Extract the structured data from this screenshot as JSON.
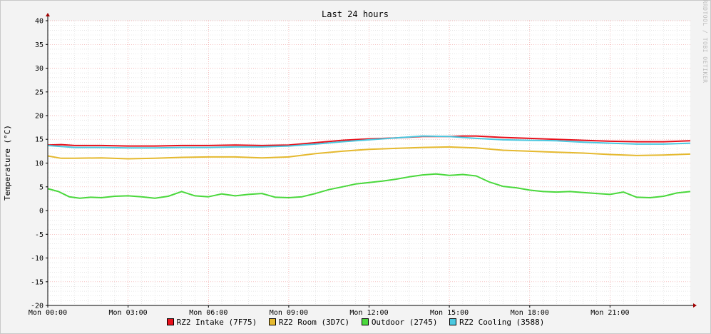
{
  "chart_data": {
    "type": "line",
    "title": "Last 24 hours",
    "ylabel": "Temperature (°C)",
    "xlabel": "",
    "watermark": "RRDTOOL / TOBI OETIKER",
    "ylim": [
      -20,
      40
    ],
    "yticks": [
      40,
      35,
      30,
      25,
      20,
      15,
      10,
      5,
      0,
      -5,
      -10,
      -15,
      -20
    ],
    "xlim": [
      0,
      24
    ],
    "xticks": [
      0,
      3,
      6,
      9,
      12,
      15,
      18,
      21
    ],
    "xtick_labels": [
      "Mon 00:00",
      "Mon 03:00",
      "Mon 06:00",
      "Mon 09:00",
      "Mon 12:00",
      "Mon 15:00",
      "Mon 18:00",
      "Mon 21:00"
    ],
    "grid": true,
    "legend_position": "bottom",
    "series": [
      {
        "name": "RZ2 Intake (7F75)",
        "color": "#e8101b",
        "x": [
          0,
          0.5,
          1,
          2,
          3,
          4,
          5,
          6,
          7,
          8,
          9,
          10,
          11,
          12,
          13,
          14,
          15,
          15.5,
          16,
          17,
          18,
          19,
          20,
          21,
          22,
          23,
          24
        ],
        "y": [
          13.8,
          13.9,
          13.7,
          13.7,
          13.6,
          13.6,
          13.7,
          13.7,
          13.8,
          13.7,
          13.8,
          14.3,
          14.8,
          15.1,
          15.3,
          15.6,
          15.6,
          15.7,
          15.7,
          15.4,
          15.2,
          15.0,
          14.8,
          14.6,
          14.5,
          14.5,
          14.7
        ]
      },
      {
        "name": "RZ2 Room (3D7C)",
        "color": "#e5b92f",
        "x": [
          0,
          0.5,
          1,
          2,
          3,
          4,
          5,
          6,
          7,
          8,
          9,
          10,
          11,
          12,
          13,
          14,
          15,
          16,
          17,
          18,
          19,
          20,
          21,
          22,
          23,
          24
        ],
        "y": [
          11.5,
          11.0,
          11.0,
          11.1,
          10.9,
          11.0,
          11.2,
          11.3,
          11.3,
          11.1,
          11.3,
          12.0,
          12.5,
          12.9,
          13.1,
          13.3,
          13.4,
          13.2,
          12.7,
          12.5,
          12.3,
          12.1,
          11.8,
          11.6,
          11.7,
          11.9
        ]
      },
      {
        "name": "Outdoor (2745)",
        "color": "#4ad83c",
        "x": [
          0,
          0.4,
          0.8,
          1.2,
          1.6,
          2,
          2.5,
          3,
          3.5,
          4,
          4.5,
          5,
          5.5,
          6,
          6.5,
          7,
          7.5,
          8,
          8.5,
          9,
          9.5,
          10,
          10.5,
          11,
          11.5,
          12,
          12.5,
          13,
          13.5,
          14,
          14.5,
          15,
          15.5,
          16,
          16.5,
          17,
          17.5,
          18,
          18.5,
          19,
          19.5,
          20,
          20.5,
          21,
          21.5,
          22,
          22.5,
          23,
          23.5,
          24
        ],
        "y": [
          4.6,
          4.0,
          2.9,
          2.6,
          2.8,
          2.7,
          3.0,
          3.1,
          2.9,
          2.6,
          3.0,
          4.0,
          3.1,
          2.9,
          3.5,
          3.1,
          3.4,
          3.6,
          2.8,
          2.7,
          2.9,
          3.6,
          4.4,
          5.0,
          5.6,
          5.9,
          6.2,
          6.6,
          7.1,
          7.5,
          7.7,
          7.4,
          7.6,
          7.3,
          6.0,
          5.1,
          4.8,
          4.3,
          4.0,
          3.9,
          4.0,
          3.8,
          3.6,
          3.4,
          3.9,
          2.8,
          2.7,
          3.0,
          3.7,
          4.0
        ]
      },
      {
        "name": "RZ2 Cooling (3588)",
        "color": "#4ac8e0",
        "x": [
          0,
          0.5,
          1,
          2,
          3,
          4,
          5,
          6,
          7,
          8,
          9,
          10,
          11,
          12,
          13,
          14,
          15,
          16,
          17,
          18,
          19,
          20,
          21,
          22,
          23,
          24
        ],
        "y": [
          13.7,
          13.5,
          13.3,
          13.3,
          13.2,
          13.2,
          13.3,
          13.3,
          13.4,
          13.4,
          13.6,
          14.0,
          14.5,
          14.9,
          15.3,
          15.7,
          15.6,
          15.2,
          14.9,
          14.8,
          14.7,
          14.4,
          14.2,
          14.0,
          14.0,
          14.2
        ]
      }
    ]
  }
}
